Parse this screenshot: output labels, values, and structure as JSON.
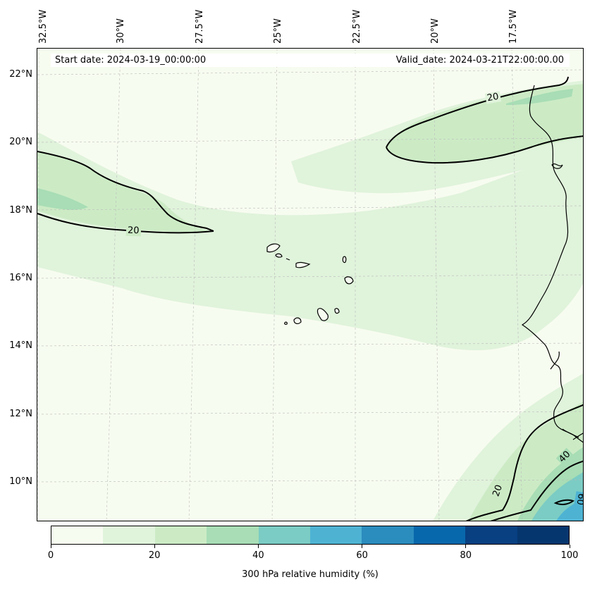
{
  "info": {
    "start_date": "Start date: 2024-03-19_00:00:00",
    "valid_date": "Valid_date: 2024-03-21T22:00:00.00"
  },
  "longitude_labels": [
    "32.5°W",
    "30°W",
    "27.5°W",
    "25°W",
    "22.5°W",
    "20°W",
    "17.5°W"
  ],
  "latitude_labels": [
    "22°N",
    "20°N",
    "18°N",
    "16°N",
    "14°N",
    "12°N",
    "10°N"
  ],
  "contour_labels": [
    "20",
    "20",
    "20",
    "40",
    "60"
  ],
  "colorbar": {
    "title": "300 hPa relative humidity (%)",
    "tick_labels": [
      "0",
      "20",
      "40",
      "60",
      "80",
      "100"
    ],
    "levels": [
      0,
      10,
      20,
      30,
      40,
      50,
      60,
      70,
      80,
      90,
      100
    ],
    "colors": [
      "#f7fcf0",
      "#e0f3db",
      "#ccebc5",
      "#a8ddb5",
      "#7bccc4",
      "#4eb3d3",
      "#2b8cbe",
      "#0868ac",
      "#084081",
      "#06366e"
    ]
  },
  "map": {
    "field": "300 hPa relative humidity",
    "projection_extent": "32.5°W–16°W, 9°N–23°N",
    "gridlines": "dashed grey"
  }
}
